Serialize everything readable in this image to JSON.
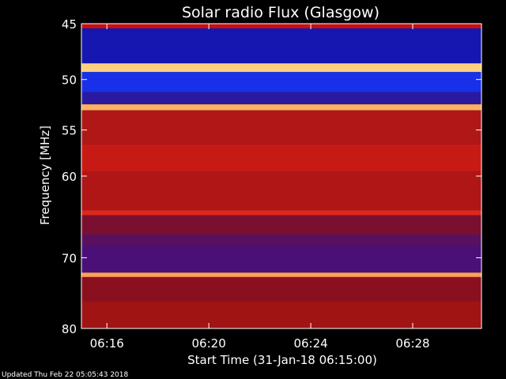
{
  "chart_data": {
    "type": "heatmap",
    "title": "Solar radio Flux (Glasgow)",
    "ylabel": "Frequency [MHz]",
    "xlabel": "Start Time (31-Jan-18 06:15:00)",
    "updated": "Updated Thu Feb 22 05:05:43 2018",
    "y_range": [
      45,
      80
    ],
    "x_range_minutes": [
      0,
      15.7
    ],
    "y_ticks": [
      {
        "value": 45,
        "label": "45"
      },
      {
        "value": 50,
        "label": "50"
      },
      {
        "value": 55,
        "label": "55"
      },
      {
        "value": 60,
        "label": "60"
      },
      {
        "value": 70,
        "label": "70"
      },
      {
        "value": 80,
        "label": "80"
      }
    ],
    "x_ticks": [
      {
        "value": 1,
        "label": "06:16"
      },
      {
        "value": 5,
        "label": "06:20"
      },
      {
        "value": 9,
        "label": "06:24"
      },
      {
        "value": 13,
        "label": "06:28"
      }
    ],
    "frequency_bands": [
      {
        "from": 45.0,
        "to": 45.4,
        "color": "#c81010"
      },
      {
        "from": 45.4,
        "to": 48.5,
        "color": "#1616b0"
      },
      {
        "from": 48.5,
        "to": 49.3,
        "color": "#ffd080"
      },
      {
        "from": 49.3,
        "to": 51.2,
        "color": "#1830e8"
      },
      {
        "from": 51.2,
        "to": 52.4,
        "color": "#2a1aa0"
      },
      {
        "from": 52.4,
        "to": 53.0,
        "color": "#ffb060"
      },
      {
        "from": 53.0,
        "to": 56.5,
        "color": "#b01818"
      },
      {
        "from": 56.5,
        "to": 59.5,
        "color": "#c81a14"
      },
      {
        "from": 59.5,
        "to": 64.0,
        "color": "#b01616"
      },
      {
        "from": 64.0,
        "to": 64.6,
        "color": "#e02818"
      },
      {
        "from": 64.6,
        "to": 67.0,
        "color": "#7a1030"
      },
      {
        "from": 67.0,
        "to": 68.5,
        "color": "#5a1060"
      },
      {
        "from": 68.5,
        "to": 72.0,
        "color": "#4a1078"
      },
      {
        "from": 72.0,
        "to": 72.6,
        "color": "#ffa050"
      },
      {
        "from": 72.6,
        "to": 76.0,
        "color": "#8a1020"
      },
      {
        "from": 76.0,
        "to": 80.0,
        "color": "#a01414"
      }
    ]
  }
}
